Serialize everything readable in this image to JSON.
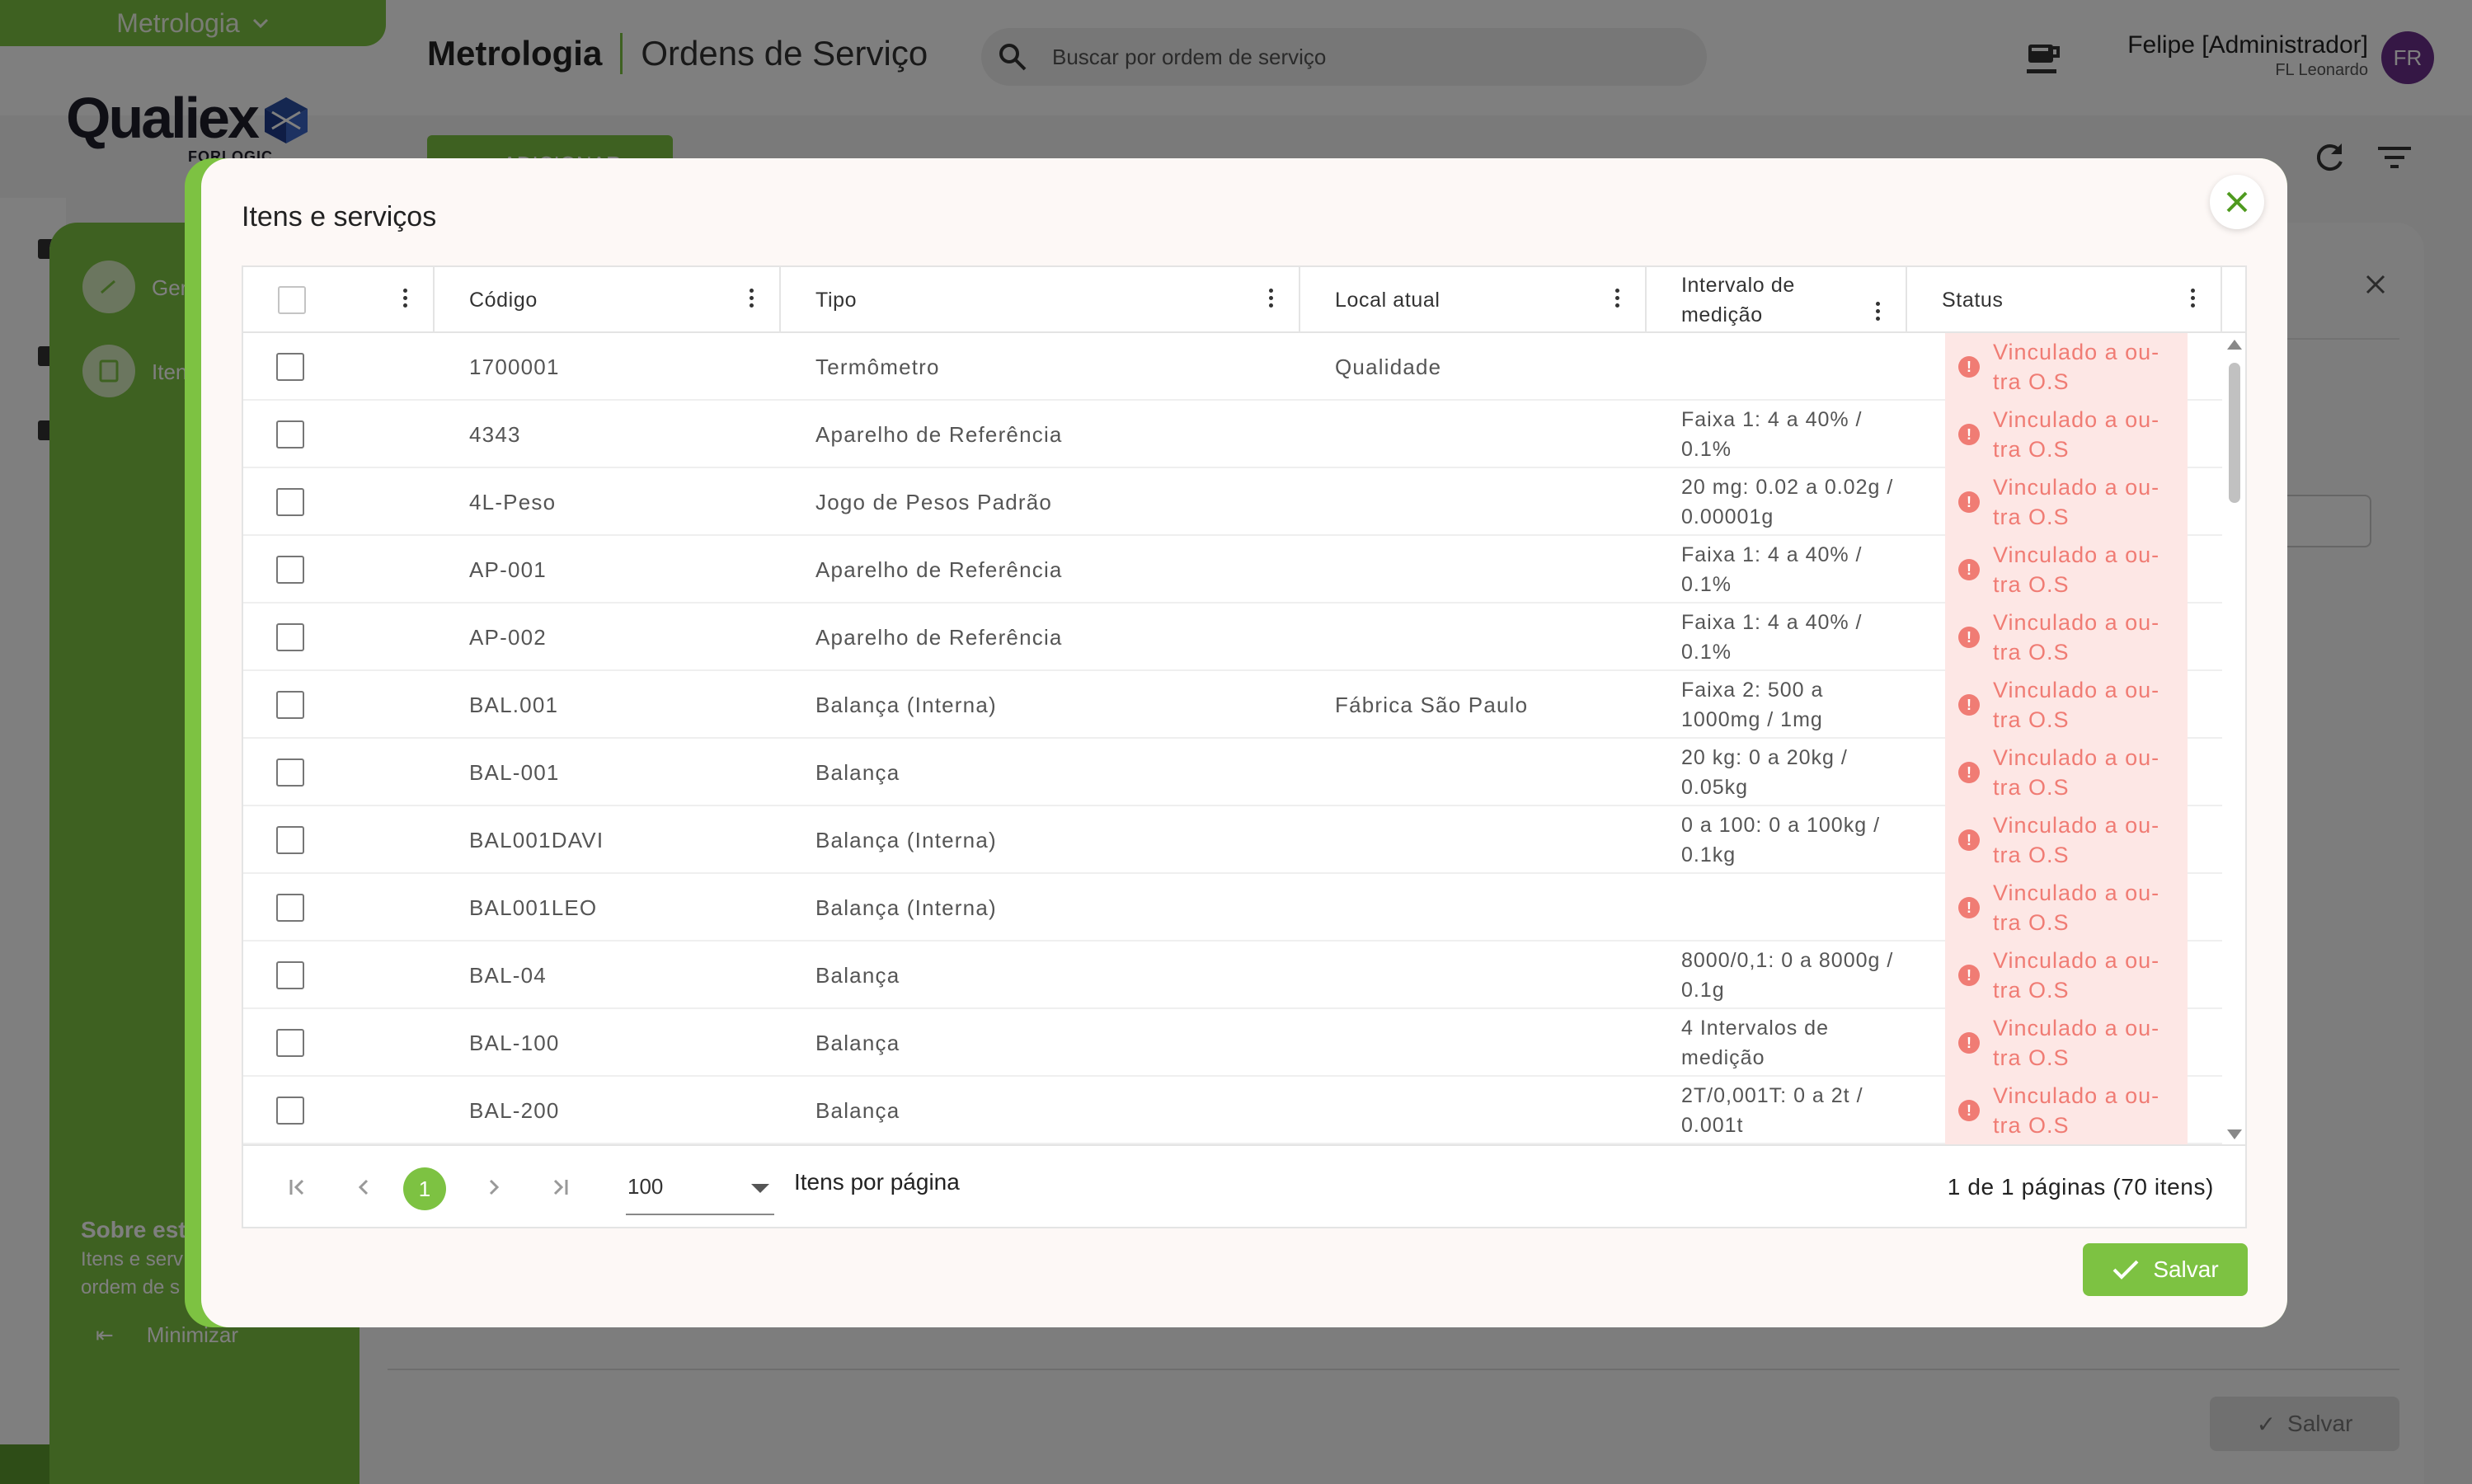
{
  "app": {
    "module_switch": "Metrologia",
    "logo_text": "Qualiex",
    "logo_sub": "FORLOGIC",
    "title_module": "Metrologia",
    "title_page": "Ordens de Serviço",
    "search_placeholder": "Buscar por ordem de serviço",
    "user_name": "Felipe [Administrador]",
    "user_sub": "FL Leonardo",
    "avatar_initials": "FR",
    "add_button": "ADICIONAR",
    "sidebar_steps": [
      "Ger",
      "Iten"
    ],
    "about_title": "Sobre esta",
    "about_text": [
      "Itens e serv",
      "ordem de s"
    ],
    "minimize_label": "Minimizar",
    "background_save_label": "Salvar"
  },
  "modal": {
    "title": "Itens e serviços",
    "columns": [
      "Código",
      "Tipo",
      "Local atual",
      "Intervalo de medição",
      "Status"
    ],
    "rows": [
      {
        "code": "1700001",
        "type": "Termômetro",
        "location": "Qualidade",
        "interval": "",
        "status": "Vinculado a ou-tra O.S"
      },
      {
        "code": "4343",
        "type": "Aparelho de Referência",
        "location": "",
        "interval": "Faixa 1: 4 a 40% / 0.1%",
        "status": "Vinculado a ou-tra O.S"
      },
      {
        "code": "4L-Peso",
        "type": "Jogo de Pesos Padrão",
        "location": "",
        "interval": "20 mg: 0.02 a 0.02g / 0.00001g",
        "status": "Vinculado a ou-tra O.S"
      },
      {
        "code": "AP-001",
        "type": "Aparelho de Referência",
        "location": "",
        "interval": "Faixa 1: 4 a 40% / 0.1%",
        "status": "Vinculado a ou-tra O.S"
      },
      {
        "code": "AP-002",
        "type": "Aparelho de Referência",
        "location": "",
        "interval": "Faixa 1: 4 a 40% / 0.1%",
        "status": "Vinculado a ou-tra O.S"
      },
      {
        "code": "BAL.001",
        "type": "Balança (Interna)",
        "location": "Fábrica São Paulo",
        "interval": "Faixa 2: 500 a 1000mg / 1mg",
        "status": "Vinculado a ou-tra O.S"
      },
      {
        "code": "BAL-001",
        "type": "Balança",
        "location": "",
        "interval": "20 kg: 0 a 20kg / 0.05kg",
        "status": "Vinculado a ou-tra O.S"
      },
      {
        "code": "BAL001DAVI",
        "type": "Balança (Interna)",
        "location": "",
        "interval": "0 a 100: 0 a 100kg / 0.1kg",
        "status": "Vinculado a ou-tra O.S"
      },
      {
        "code": "BAL001LEO",
        "type": "Balança (Interna)",
        "location": "",
        "interval": "",
        "status": "Vinculado a ou-tra O.S"
      },
      {
        "code": "BAL-04",
        "type": "Balança",
        "location": "",
        "interval": "8000/0,1: 0 a 8000g / 0.1g",
        "status": "Vinculado a ou-tra O.S"
      },
      {
        "code": "BAL-100",
        "type": "Balança",
        "location": "",
        "interval": "4 Intervalos de medição",
        "status": "Vinculado a ou-tra O.S"
      },
      {
        "code": "BAL-200",
        "type": "Balança",
        "location": "",
        "interval": "2T/0,001T: 0 a 2t / 0.001t",
        "status": "Vinculado a ou-tra O.S"
      }
    ],
    "pager": {
      "current_page": "1",
      "page_size": "100",
      "page_size_label": "Itens por página",
      "info": "1 de 1 páginas (70 itens)"
    },
    "save_label": "Salvar"
  },
  "colors": {
    "accent": "#7dc242",
    "status_text": "#f07c74",
    "status_bg": "#fde7e5",
    "avatar": "#6a2e8a"
  }
}
